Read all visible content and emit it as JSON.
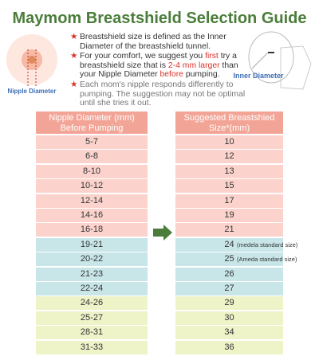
{
  "header": {
    "title": "Maymom Breastshield Selection Guide"
  },
  "illustrations": {
    "left_label": "Nipple Diameter",
    "right_label": "Inner Diameter"
  },
  "bullets": [
    [
      "Breastshield size is defined as the Inner Diameter of the breastshield tunnel."
    ],
    [
      "For your comfort, we suggest you ",
      "first",
      " try a breastshield size that is ",
      "2-4 mm larger",
      " than your Nipple Diameter ",
      "before",
      " pumping."
    ],
    [
      "Each mom's nipple responds differently to pumping. The suggestion may not be optimal until she tries it out."
    ]
  ],
  "table": {
    "headers": [
      "Nipple Diameter (mm) Before Pumping",
      "Suggested Breastshied Size*(mm)"
    ],
    "rows": [
      {
        "nipple": "5-7",
        "size": 10,
        "color": "#fbd3cc"
      },
      {
        "nipple": "6-8",
        "size": 12,
        "color": "#fbd3cc"
      },
      {
        "nipple": "8-10",
        "size": 13,
        "color": "#fbd3cc"
      },
      {
        "nipple": "10-12",
        "size": 15,
        "color": "#fbd3cc"
      },
      {
        "nipple": "12-14",
        "size": 17,
        "color": "#fbd3cc"
      },
      {
        "nipple": "14-16",
        "size": 19,
        "color": "#fbd3cc"
      },
      {
        "nipple": "16-18",
        "size": 21,
        "color": "#fbd3cc"
      },
      {
        "nipple": "19-21",
        "size": 24,
        "color": "#c8e6e8",
        "note": "(medela standard size)"
      },
      {
        "nipple": "20-22",
        "size": 25,
        "color": "#c8e6e8",
        "note": "(Ameda standard size)"
      },
      {
        "nipple": "21-23",
        "size": 26,
        "color": "#c8e6e8"
      },
      {
        "nipple": "22-24",
        "size": 27,
        "color": "#c8e6e8"
      },
      {
        "nipple": "24-26",
        "size": 29,
        "color": "#eef3c8"
      },
      {
        "nipple": "25-27",
        "size": 30,
        "color": "#eef3c8"
      },
      {
        "nipple": "28-31",
        "size": 34,
        "color": "#eef3c8"
      },
      {
        "nipple": "31-33",
        "size": 36,
        "color": "#eef3c8"
      }
    ]
  }
}
